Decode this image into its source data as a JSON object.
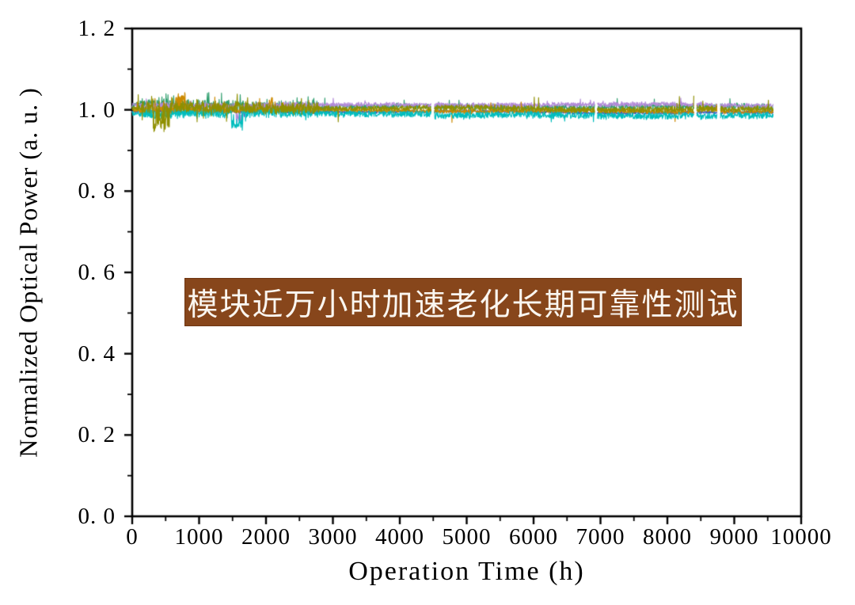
{
  "figure": {
    "background": "#ffffff"
  },
  "chart_data": {
    "type": "line",
    "title": "",
    "xlabel": "Operation Time (h)",
    "ylabel": "Normalized Optical Power (a. u. )",
    "xlim": [
      0,
      10000
    ],
    "ylim": [
      0.0,
      1.2
    ],
    "grid": false,
    "legend": "none",
    "frame_color": "#000000",
    "tick_color": "#000000",
    "x_ticks": {
      "values": [
        0,
        1000,
        2000,
        3000,
        4000,
        5000,
        6000,
        7000,
        8000,
        9000,
        10000
      ],
      "labels": [
        "0",
        "1000",
        "2000",
        "3000",
        "4000",
        "5000",
        "6000",
        "7000",
        "8000",
        "9000",
        "10000"
      ],
      "minor_step": 500
    },
    "y_ticks": {
      "values": [
        0.0,
        0.2,
        0.4,
        0.6,
        0.8,
        1.0,
        1.2
      ],
      "labels": [
        "0. 0",
        "0. 2",
        "0. 4",
        "0. 6",
        "0. 8",
        "1. 0",
        "1. 2"
      ],
      "minor_step": 0.1
    },
    "data_end_h": 9580,
    "sample_step_h": 5,
    "seed": 1234,
    "drift_total": -0.0025,
    "gaps_h": [
      [
        4468,
        4515
      ],
      [
        6912,
        6950
      ],
      [
        8398,
        8438
      ],
      [
        8742,
        8792
      ]
    ],
    "series": [
      {
        "id": "trace-blue",
        "color": "#3d55c4",
        "base": 0.9955,
        "amp": 0.0035,
        "early_mult": 1.5,
        "spike_prob_early": 0.004,
        "spike_prob_late": 0.001,
        "spike_mag": 0.012,
        "spike_up_bias": 0.3,
        "events": []
      },
      {
        "id": "trace-green",
        "color": "#2f9e6e",
        "base": 1.009,
        "amp": 0.0075,
        "early_mult": 1.9,
        "spike_prob_early": 0.05,
        "spike_prob_late": 0.012,
        "spike_mag": 0.018,
        "spike_up_bias": 0.9,
        "events": []
      },
      {
        "id": "trace-purple",
        "color": "#b289d8",
        "base": 1.012,
        "amp": 0.0055,
        "early_mult": 1.3,
        "spike_prob_early": 0.01,
        "spike_prob_late": 0.006,
        "spike_mag": 0.01,
        "spike_up_bias": 0.85,
        "events": [
          [
            1555,
            1665,
            -0.03,
            0.8
          ],
          [
            4510,
            9580,
            0.0015,
            1
          ]
        ]
      },
      {
        "id": "trace-orange",
        "color": "#cc8a00",
        "base": 0.999,
        "amp": 0.005,
        "early_mult": 1.6,
        "spike_prob_early": 0.02,
        "spike_prob_late": 0.004,
        "spike_mag": 0.02,
        "spike_up_bias": 0.8,
        "events": [
          [
            645,
            790,
            0.034,
            0.7
          ],
          [
            2050,
            2110,
            0.022,
            0.7
          ],
          [
            8440,
            8740,
            0.006,
            1
          ]
        ]
      },
      {
        "id": "trace-cyan",
        "color": "#00bdbd",
        "base": 0.9925,
        "amp": 0.008,
        "early_mult": 1.4,
        "spike_prob_early": 0.01,
        "spike_prob_late": 0.004,
        "spike_mag": 0.012,
        "spike_up_bias": 0.2,
        "events": [
          [
            1480,
            1650,
            -0.025,
            0.85
          ],
          [
            4510,
            9580,
            -0.005,
            1
          ]
        ]
      },
      {
        "id": "trace-olive",
        "color": "#8f8f00",
        "base": 1.004,
        "amp": 0.007,
        "early_mult": 1.9,
        "spike_prob_early": 0.05,
        "spike_prob_late": 0.01,
        "spike_mag": 0.026,
        "spike_up_bias": 0.8,
        "events": [
          [
            300,
            560,
            -0.042,
            0.55
          ]
        ]
      }
    ],
    "annotation": {
      "text": "模块近万小时加速老化长期可靠性测试",
      "bg_color": "#87461b",
      "border_color": "#6e3511",
      "text_color": "#faf6f0"
    }
  }
}
